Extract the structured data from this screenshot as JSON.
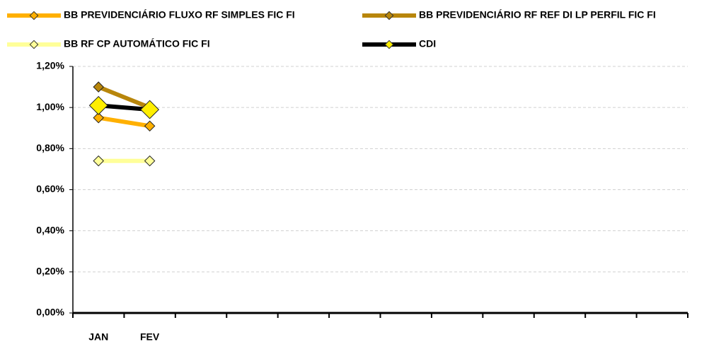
{
  "chart_data": {
    "type": "line",
    "categories": [
      "JAN",
      "FEV",
      null,
      null,
      null,
      null,
      null,
      null,
      null,
      null,
      null,
      null
    ],
    "series": [
      {
        "name": "BB PREVIDENCIÁRIO FLUXO RF SIMPLES FIC FI",
        "color": "#ffb000",
        "marker_color": "#ffb000",
        "values": [
          0.95,
          0.91,
          null,
          null,
          null,
          null,
          null,
          null,
          null,
          null,
          null,
          null
        ]
      },
      {
        "name": "BB PREVIDENCIÁRIO RF REF DI LP PERFIL FIC FI",
        "color": "#b8860b",
        "marker_color": "#b8860b",
        "values": [
          1.1,
          1.0,
          null,
          null,
          null,
          null,
          null,
          null,
          null,
          null,
          null,
          null
        ]
      },
      {
        "name": "BB RF CP AUTOMÁTICO FIC FI",
        "color": "#ffff99",
        "marker_color": "#ffff99",
        "values": [
          0.74,
          0.74,
          null,
          null,
          null,
          null,
          null,
          null,
          null,
          null,
          null,
          null
        ]
      },
      {
        "name": "CDI",
        "color": "#000000",
        "marker_color": "#ffee00",
        "values": [
          1.01,
          0.99,
          null,
          null,
          null,
          null,
          null,
          null,
          null,
          null,
          null,
          null
        ]
      }
    ],
    "ylim": [
      0,
      1.2
    ],
    "yticks": [
      {
        "value": 0,
        "label": "0,00%"
      },
      {
        "value": 0.2,
        "label": "0,20%"
      },
      {
        "value": 0.4,
        "label": "0,40%"
      },
      {
        "value": 0.6,
        "label": "0,60%"
      },
      {
        "value": 0.8,
        "label": "0,80%"
      },
      {
        "value": 1.0,
        "label": "1,00%"
      },
      {
        "value": 1.2,
        "label": "1,20%"
      }
    ],
    "grid": true
  }
}
